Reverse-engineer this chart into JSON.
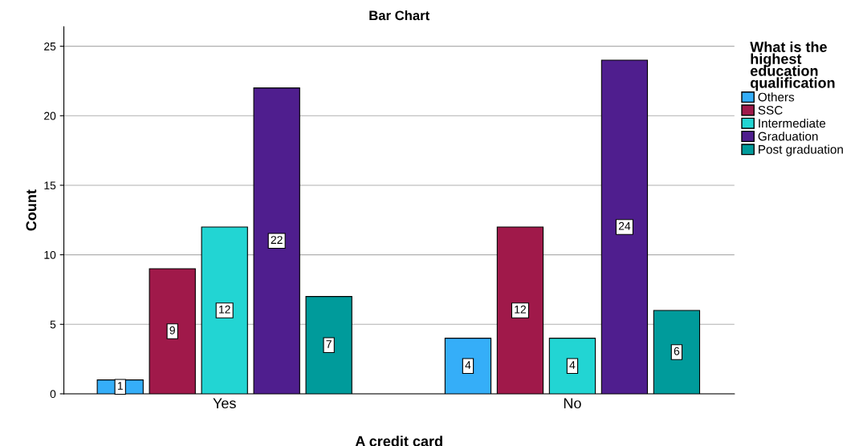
{
  "chart_data": {
    "type": "bar",
    "title": "Bar Chart",
    "xlabel": "A credit card",
    "ylabel": "Count",
    "legend_title": "What is the highest education qualification",
    "categories": [
      "Yes",
      "No"
    ],
    "series": [
      {
        "name": "Others",
        "color": "#35aef8",
        "values": [
          1,
          4
        ]
      },
      {
        "name": "SSC",
        "color": "#a0194a",
        "values": [
          9,
          12
        ]
      },
      {
        "name": "Intermediate",
        "color": "#22d5d3",
        "values": [
          12,
          4
        ]
      },
      {
        "name": "Graduation",
        "color": "#4f1e8e",
        "values": [
          22,
          24
        ]
      },
      {
        "name": "Post graduation",
        "color": "#009b9b",
        "values": [
          7,
          6
        ]
      }
    ],
    "ylim": [
      0,
      26.4
    ],
    "yticks": [
      0,
      5,
      10,
      15,
      20,
      25
    ],
    "grid": "y",
    "legend": "right",
    "data_labels": true
  }
}
